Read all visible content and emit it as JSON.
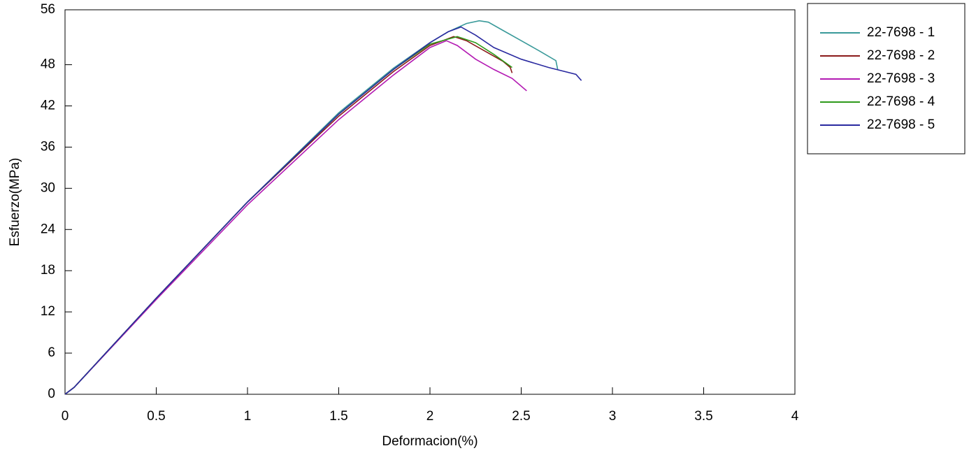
{
  "chart_data": {
    "type": "line",
    "x_label": "Deformacion(%)",
    "y_label": "Esfuerzo(MPa)",
    "xlim": [
      0,
      4
    ],
    "xticks": [
      0,
      0.5,
      1,
      1.5,
      2,
      2.5,
      3,
      3.5,
      4
    ],
    "ylim": [
      0,
      56
    ],
    "yticks": [
      0,
      6,
      12,
      18,
      24,
      30,
      36,
      42,
      48,
      56
    ],
    "legend": "outside-right",
    "series": [
      {
        "name": "22-7698 - 1",
        "color": "#3a9a9a",
        "x": [
          0,
          0.05,
          0.5,
          1,
          1.5,
          1.8,
          2.0,
          2.1,
          2.2,
          2.27,
          2.32,
          2.4,
          2.5,
          2.6,
          2.69,
          2.7
        ],
        "values": [
          0,
          1,
          14,
          28,
          41,
          47.5,
          51.2,
          52.8,
          54,
          54.4,
          54.2,
          53,
          51.5,
          50,
          48.6,
          47.3
        ]
      },
      {
        "name": "22-7698 - 2",
        "color": "#8b1a1a",
        "x": [
          0,
          0.05,
          0.5,
          1,
          1.5,
          1.8,
          2.0,
          2.13,
          2.2,
          2.3,
          2.4,
          2.44,
          2.45
        ],
        "values": [
          0,
          1,
          14,
          28,
          40.5,
          47,
          50.8,
          52.1,
          51.5,
          50,
          48.5,
          47.6,
          46.8
        ]
      },
      {
        "name": "22-7698 - 3",
        "color": "#b31ab3",
        "x": [
          0,
          0.05,
          0.5,
          1,
          1.5,
          1.8,
          2.0,
          2.09,
          2.15,
          2.25,
          2.35,
          2.45,
          2.53
        ],
        "values": [
          0,
          1,
          13.8,
          27.6,
          40,
          46.5,
          50.5,
          51.5,
          50.8,
          48.8,
          47.3,
          46,
          44.2
        ]
      },
      {
        "name": "22-7698 - 4",
        "color": "#2e9a1a",
        "x": [
          0,
          0.05,
          0.5,
          1,
          1.5,
          1.8,
          2.0,
          2.15,
          2.25,
          2.35,
          2.45
        ],
        "values": [
          0,
          1,
          14,
          28,
          40.8,
          47.3,
          51,
          52.1,
          51.2,
          49.5,
          47.6
        ]
      },
      {
        "name": "22-7698 - 5",
        "color": "#2a2aa0",
        "x": [
          0,
          0.05,
          0.5,
          1,
          1.5,
          1.8,
          2.0,
          2.1,
          2.17,
          2.25,
          2.35,
          2.5,
          2.65,
          2.8,
          2.83
        ],
        "values": [
          0,
          1,
          14,
          28,
          40.8,
          47.3,
          51.2,
          52.8,
          53.5,
          52.3,
          50.5,
          48.8,
          47.6,
          46.6,
          45.7
        ]
      }
    ]
  }
}
